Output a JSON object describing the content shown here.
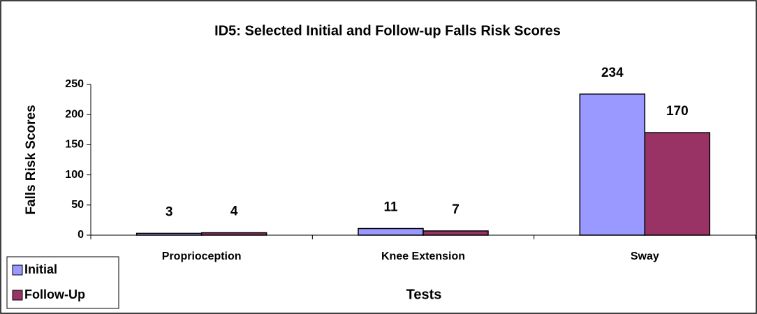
{
  "chart_data": {
    "type": "bar",
    "title": "ID5: Selected Initial and Follow-up Falls Risk Scores",
    "x_label": "Tests",
    "y_label": "Falls Risk Scores",
    "categories": [
      "Proprioception",
      "Knee Extension",
      "Sway"
    ],
    "series": [
      {
        "name": "Initial",
        "color": "#9999ff",
        "values": [
          3,
          11,
          234
        ]
      },
      {
        "name": "Follow-Up",
        "color": "#993366",
        "values": [
          4,
          7,
          170
        ]
      }
    ],
    "ylim": [
      0,
      250
    ],
    "yticks": [
      0,
      50,
      100,
      150,
      200,
      250
    ],
    "grid": false,
    "legend": "bottom-left"
  }
}
